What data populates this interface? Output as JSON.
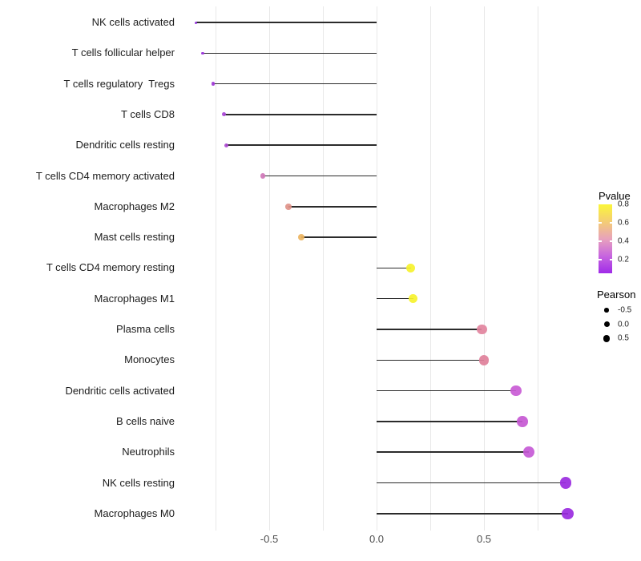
{
  "chart_data": {
    "type": "lollipop",
    "title": "",
    "xlabel": "",
    "ylabel": "",
    "x_tick_labels": [
      "-0.5",
      "0.0",
      "0.5"
    ],
    "x_tick_values": [
      -0.5,
      0.0,
      0.5
    ],
    "grid_values": [
      -0.75,
      -0.5,
      -0.25,
      0.0,
      0.25,
      0.5,
      0.75
    ],
    "xlim": [
      -0.93,
      0.97
    ],
    "grid_color": "#e8e8e8",
    "stem_color": "#2b2b2b",
    "points": [
      {
        "label": "NK cells activated",
        "pearson": -0.84,
        "color": "#8f2bdb"
      },
      {
        "label": "T cells follicular helper",
        "pearson": -0.81,
        "color": "#9930da"
      },
      {
        "label": "T cells regulatory  Tregs",
        "pearson": -0.76,
        "color": "#a038d7"
      },
      {
        "label": "T cells CD8",
        "pearson": -0.71,
        "color": "#a743d5"
      },
      {
        "label": "Dendritic cells resting",
        "pearson": -0.7,
        "color": "#ae4bd2"
      },
      {
        "label": "T cells CD4 memory activated",
        "pearson": -0.53,
        "color": "#d077b8"
      },
      {
        "label": "Macrophages M2",
        "pearson": -0.41,
        "color": "#df9289"
      },
      {
        "label": "Mast cells resting",
        "pearson": -0.35,
        "color": "#ebb45f"
      },
      {
        "label": "T cells CD4 memory resting",
        "pearson": 0.16,
        "color": "#f6f22d"
      },
      {
        "label": "Macrophages M1",
        "pearson": 0.17,
        "color": "#f6f22d"
      },
      {
        "label": "Plasma cells",
        "pearson": 0.49,
        "color": "#e2849e"
      },
      {
        "label": "Monocytes",
        "pearson": 0.5,
        "color": "#e0809a"
      },
      {
        "label": "Dendritic cells activated",
        "pearson": 0.65,
        "color": "#c95bd5"
      },
      {
        "label": "B cells naive",
        "pearson": 0.68,
        "color": "#c658d3"
      },
      {
        "label": "Neutrophils",
        "pearson": 0.71,
        "color": "#c55ad6"
      },
      {
        "label": "NK cells resting",
        "pearson": 0.88,
        "color": "#9a2bdf"
      },
      {
        "label": "Macrophages M0",
        "pearson": 0.89,
        "color": "#9a2bdf"
      }
    ],
    "legend": {
      "color": {
        "title": "Pvalue",
        "tick_labels": [
          "0.8",
          "0.6",
          "0.4",
          "0.2"
        ],
        "tick_values": [
          0.8,
          0.6,
          0.4,
          0.2
        ],
        "range": [
          0.8,
          0.05
        ],
        "gradient_top_to_bottom": [
          "#fbf639",
          "#f4cd74",
          "#e8a2bc",
          "#c765df",
          "#a02be8"
        ]
      },
      "size": {
        "title": "Pearson",
        "entries": [
          "-0.5",
          "0.0",
          "0.5"
        ],
        "entry_values": [
          -0.5,
          0.0,
          0.5
        ]
      }
    }
  }
}
